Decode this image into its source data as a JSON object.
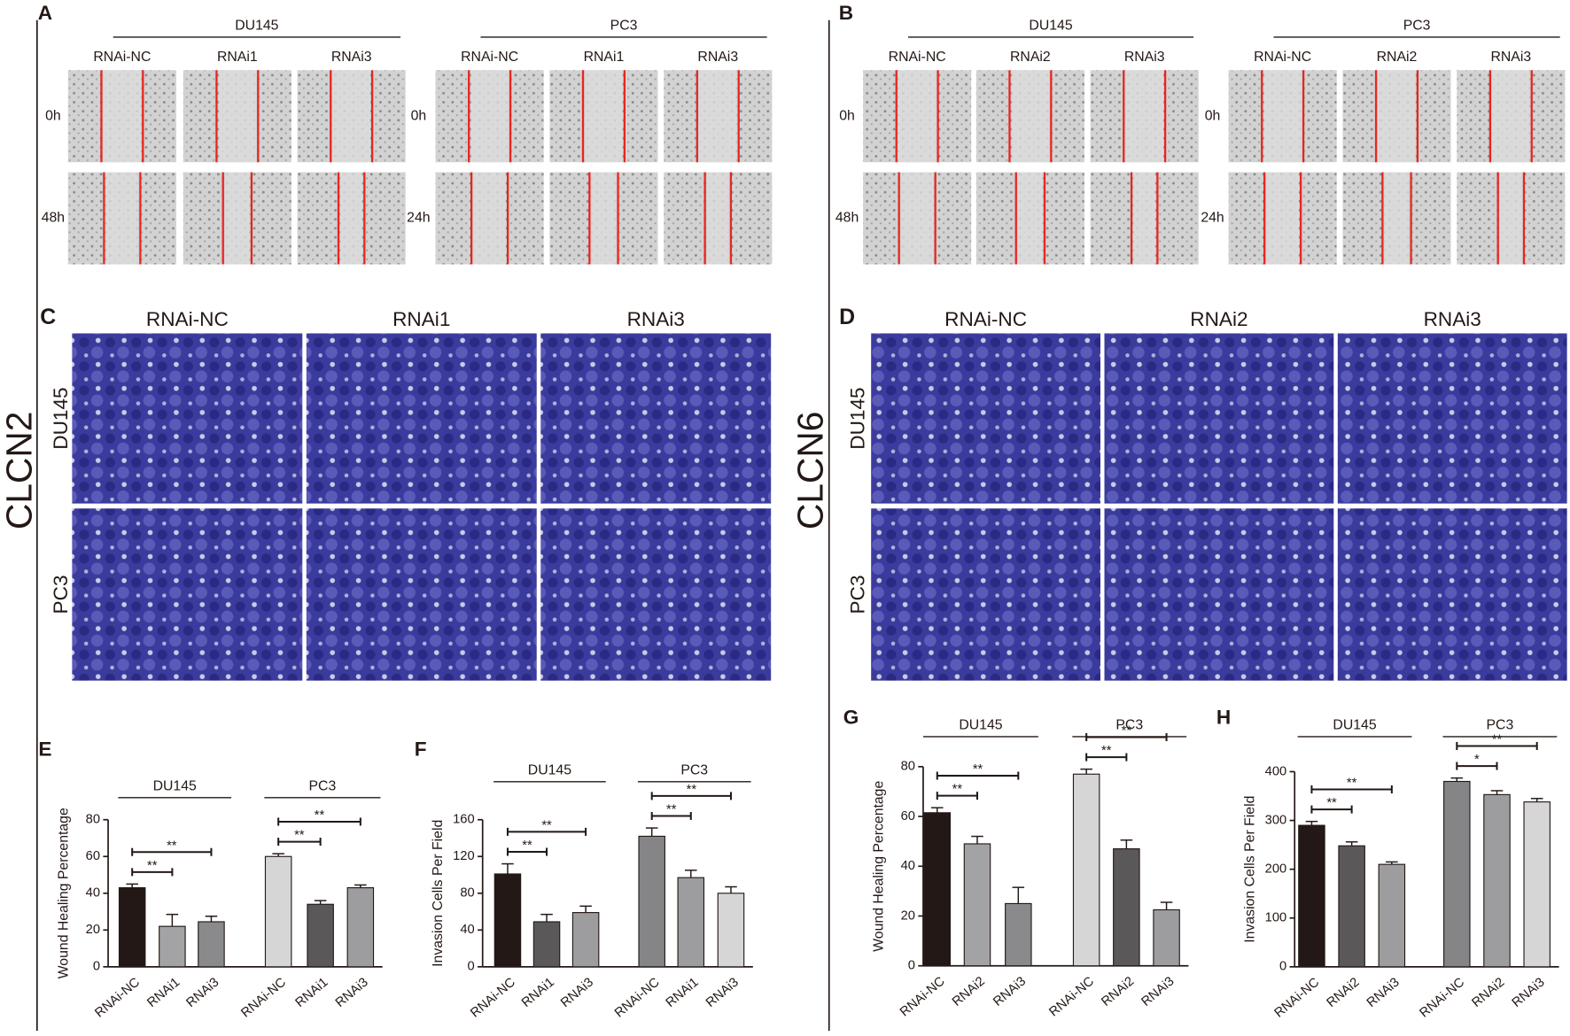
{
  "side_labels": [
    "CLCN2",
    "CLCN6"
  ],
  "wound_panels": [
    {
      "label": "A",
      "groups": [
        {
          "name": "DU145",
          "columns": [
            "RNAi-NC",
            "RNAi1",
            "RNAi3"
          ],
          "rows": [
            "0h",
            "48h"
          ]
        },
        {
          "name": "PC3",
          "columns": [
            "RNAi-NC",
            "RNAi1",
            "RNAi3"
          ],
          "rows": [
            "0h",
            "24h"
          ]
        }
      ]
    },
    {
      "label": "B",
      "groups": [
        {
          "name": "DU145",
          "columns": [
            "RNAi-NC",
            "RNAi2",
            "RNAi3"
          ],
          "rows": [
            "0h",
            "48h"
          ]
        },
        {
          "name": "PC3",
          "columns": [
            "RNAi-NC",
            "RNAi2",
            "RNAi3"
          ],
          "rows": [
            "0h",
            "24h"
          ]
        }
      ]
    }
  ],
  "invasion_panels": [
    {
      "label": "C",
      "columns": [
        "RNAi-NC",
        "RNAi1",
        "RNAi3"
      ],
      "rows": [
        "DU145",
        "PC3"
      ]
    },
    {
      "label": "D",
      "columns": [
        "RNAi-NC",
        "RNAi2",
        "RNAi3"
      ],
      "rows": [
        "DU145",
        "PC3"
      ]
    }
  ],
  "chart_data": [
    {
      "type": "bar",
      "label": "E",
      "y_label": "Wound Healing Percentage",
      "groups": [
        "DU145",
        "PC3"
      ],
      "categories": [
        "RNAi-NC",
        "RNAi1",
        "RNAi3",
        "RNAi-NC",
        "RNAi1",
        "RNAi3"
      ],
      "values": [
        43,
        22,
        24.5,
        60,
        34,
        43
      ],
      "errors": [
        2,
        6.5,
        3,
        1.5,
        2,
        1.5
      ],
      "colors": [
        "#231815",
        "#a3a3a6",
        "#8a8a8c",
        "#d6d6d6",
        "#5a5858",
        "#9d9d9f"
      ],
      "ylim": [
        0,
        80
      ],
      "yticks": [
        0,
        20,
        40,
        60,
        80
      ],
      "significance": [
        {
          "from": 0,
          "to": 1,
          "label": "**"
        },
        {
          "from": 0,
          "to": 2,
          "label": "**"
        },
        {
          "from": 3,
          "to": 4,
          "label": "**"
        },
        {
          "from": 3,
          "to": 5,
          "label": "**"
        }
      ]
    },
    {
      "type": "bar",
      "label": "F",
      "y_label": "Invasion Cells Per Field",
      "groups": [
        "DU145",
        "PC3"
      ],
      "categories": [
        "RNAi-NC",
        "RNAi1",
        "RNAi3",
        "RNAi-NC",
        "RNAi1",
        "RNAi3"
      ],
      "values": [
        101,
        49,
        59,
        142,
        97,
        80
      ],
      "errors": [
        11,
        8,
        7,
        9,
        8,
        7
      ],
      "colors": [
        "#231815",
        "#5a5858",
        "#9d9d9f",
        "#858587",
        "#9d9d9f",
        "#d6d6d6"
      ],
      "ylim": [
        0,
        160
      ],
      "yticks": [
        0,
        40,
        80,
        120,
        160
      ],
      "significance": [
        {
          "from": 0,
          "to": 1,
          "label": "**"
        },
        {
          "from": 0,
          "to": 2,
          "label": "**"
        },
        {
          "from": 3,
          "to": 4,
          "label": "**"
        },
        {
          "from": 3,
          "to": 5,
          "label": "**"
        }
      ]
    },
    {
      "type": "bar",
      "label": "G",
      "y_label": "Wound Healing Percentage",
      "groups": [
        "DU145",
        "PC3"
      ],
      "categories": [
        "RNAi-NC",
        "RNAi2",
        "RNAi3",
        "RNAi-NC",
        "RNAi2",
        "RNAi3"
      ],
      "values": [
        61.5,
        49,
        25,
        77,
        47,
        22.5
      ],
      "errors": [
        2,
        3,
        6.5,
        2,
        3.5,
        3
      ],
      "colors": [
        "#231815",
        "#a3a3a6",
        "#8a8a8c",
        "#d6d6d6",
        "#5a5858",
        "#9d9d9f"
      ],
      "ylim": [
        0,
        80
      ],
      "yticks": [
        0,
        20,
        40,
        60,
        80
      ],
      "significance": [
        {
          "from": 0,
          "to": 1,
          "label": "**"
        },
        {
          "from": 0,
          "to": 2,
          "label": "**"
        },
        {
          "from": 3,
          "to": 4,
          "label": "**"
        },
        {
          "from": 3,
          "to": 5,
          "label": "**"
        }
      ]
    },
    {
      "type": "bar",
      "label": "H",
      "y_label": "Invasion Cells Per Field",
      "groups": [
        "DU145",
        "PC3"
      ],
      "categories": [
        "RNAi-NC",
        "RNAi2",
        "RNAi3",
        "RNAi-NC",
        "RNAi2",
        "RNAi3"
      ],
      "values": [
        290,
        248,
        210,
        380,
        353,
        338
      ],
      "errors": [
        8,
        8,
        5,
        7,
        8,
        7
      ],
      "colors": [
        "#231815",
        "#5a5858",
        "#9d9d9f",
        "#858587",
        "#9d9d9f",
        "#d6d6d6"
      ],
      "ylim": [
        0,
        400
      ],
      "yticks": [
        0,
        100,
        200,
        300,
        400
      ],
      "significance": [
        {
          "from": 0,
          "to": 1,
          "label": "**"
        },
        {
          "from": 0,
          "to": 2,
          "label": "**"
        },
        {
          "from": 3,
          "to": 4,
          "label": "*"
        },
        {
          "from": 3,
          "to": 5,
          "label": "**"
        }
      ]
    }
  ]
}
